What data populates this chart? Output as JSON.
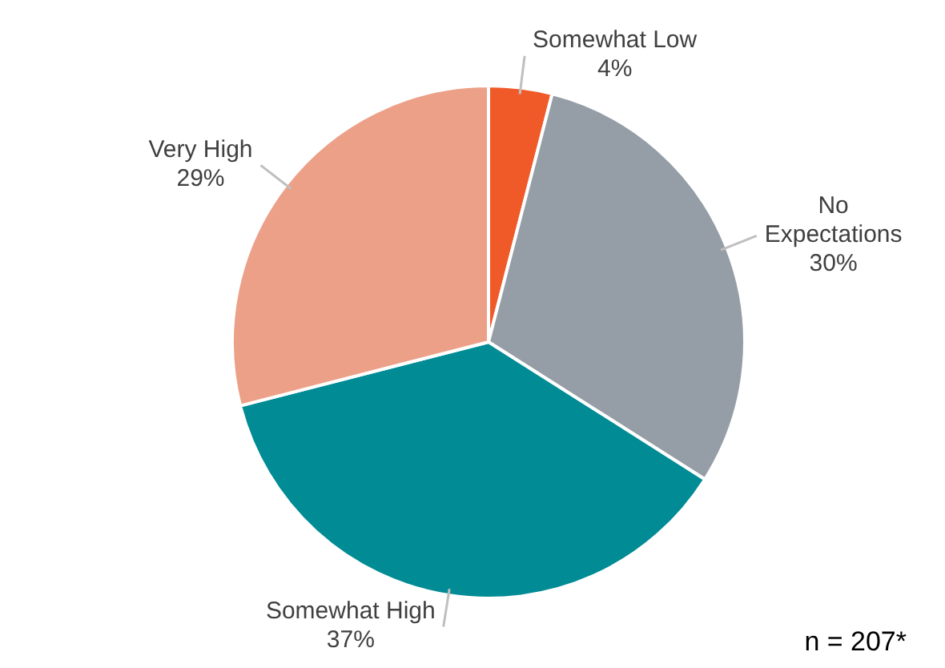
{
  "chart_data": {
    "type": "pie",
    "categories": [
      "Somewhat Low",
      "No Expectations",
      "Somewhat High",
      "Very High"
    ],
    "values": [
      4,
      30,
      37,
      29
    ],
    "value_labels": [
      "4%",
      "30%",
      "37%",
      "29%"
    ],
    "colors": [
      "#f05a28",
      "#959ea6",
      "#008b95",
      "#eca088"
    ],
    "legend": false,
    "annotations": [
      "n = 207*"
    ]
  }
}
